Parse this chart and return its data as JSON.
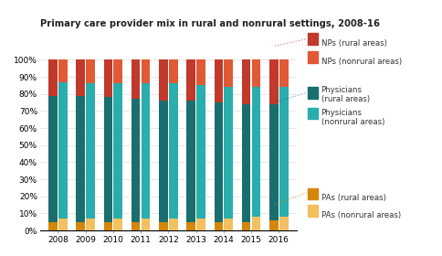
{
  "years": [
    2008,
    2009,
    2010,
    2011,
    2012,
    2013,
    2014,
    2015,
    2016
  ],
  "title": "Primary care provider mix in rural and nonrural settings, 2008-16",
  "colors": {
    "pa_rural": "#D4860A",
    "pa_nonrural": "#F2C060",
    "phys_rural": "#1A6E6E",
    "phys_nonrural": "#2AADAD",
    "np_rural": "#C0392B",
    "np_nonrural": "#E05A35"
  },
  "rural": {
    "pa": [
      5,
      5,
      5,
      5,
      5,
      5,
      5,
      5,
      6
    ],
    "phys": [
      74,
      74,
      73,
      72,
      71,
      71,
      70,
      69,
      68
    ],
    "np": [
      21,
      21,
      22,
      23,
      24,
      24,
      25,
      26,
      26
    ]
  },
  "nonrural": {
    "pa": [
      7,
      7,
      7,
      7,
      7,
      7,
      7,
      8,
      8
    ],
    "phys": [
      80,
      79,
      79,
      79,
      79,
      78,
      77,
      76,
      76
    ],
    "np": [
      13,
      14,
      14,
      14,
      14,
      15,
      16,
      16,
      16
    ]
  },
  "bar_width": 0.32,
  "bar_gap": 0.04,
  "legend_entries": [
    {
      "label": "NPs (rural areas)",
      "color_key": "np_rural"
    },
    {
      "label": "NPs (nonrural areas)",
      "color_key": "np_nonrural"
    },
    {
      "label": "Physicians\n(rural areas)",
      "color_key": "phys_rural"
    },
    {
      "label": "Physicians\n(nonrural areas)",
      "color_key": "phys_nonrural"
    },
    {
      "label": "PAs (rural areas)",
      "color_key": "pa_rural"
    },
    {
      "label": "PAs (nonrural areas)",
      "color_key": "pa_nonrural"
    }
  ],
  "yticks": [
    0,
    10,
    20,
    30,
    40,
    50,
    60,
    70,
    80,
    90,
    100
  ],
  "ytick_labels": [
    "0%",
    "10%",
    "20%",
    "30%",
    "40%",
    "50%",
    "60%",
    "70%",
    "80%",
    "90%",
    "100%"
  ]
}
